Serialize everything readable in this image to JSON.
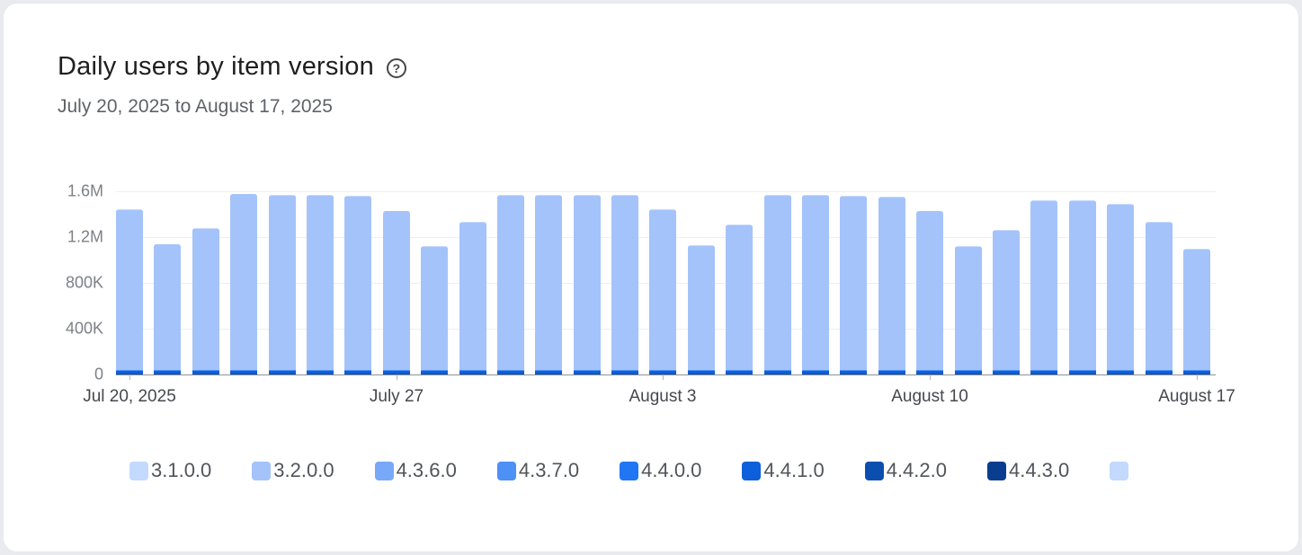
{
  "header": {
    "help_glyph": "?"
  },
  "chart_data": {
    "type": "bar",
    "stacked": true,
    "title": "Daily users by item version",
    "subtitle": "July 20, 2025 to August 17, 2025",
    "ylim": [
      0,
      1600000
    ],
    "grid": true,
    "legend_position": "bottom",
    "y_ticks": [
      {
        "value": 0,
        "label": "0"
      },
      {
        "value": 400000,
        "label": "400K"
      },
      {
        "value": 800000,
        "label": "800K"
      },
      {
        "value": 1200000,
        "label": "1.2M"
      },
      {
        "value": 1600000,
        "label": "1.6M"
      }
    ],
    "x": [
      "Jul 20",
      "Jul 21",
      "Jul 22",
      "Jul 23",
      "Jul 24",
      "Jul 25",
      "Jul 26",
      "Jul 27",
      "Jul 28",
      "Jul 29",
      "Jul 30",
      "Jul 31",
      "Aug 1",
      "Aug 2",
      "Aug 3",
      "Aug 4",
      "Aug 5",
      "Aug 6",
      "Aug 7",
      "Aug 8",
      "Aug 9",
      "Aug 10",
      "Aug 11",
      "Aug 12",
      "Aug 13",
      "Aug 14",
      "Aug 15",
      "Aug 16",
      "Aug 17"
    ],
    "x_tick_labels": [
      {
        "index": 0,
        "label": "Jul 20, 2025"
      },
      {
        "index": 7,
        "label": "July 27"
      },
      {
        "index": 14,
        "label": "August 3"
      },
      {
        "index": 21,
        "label": "August 10"
      },
      {
        "index": 28,
        "label": "August 17"
      }
    ],
    "totals_estimated": [
      1440000,
      1140000,
      1280000,
      1580000,
      1570000,
      1570000,
      1560000,
      1430000,
      1120000,
      1330000,
      1570000,
      1570000,
      1570000,
      1570000,
      1440000,
      1130000,
      1310000,
      1570000,
      1570000,
      1560000,
      1550000,
      1430000,
      1120000,
      1260000,
      1520000,
      1520000,
      1490000,
      1330000,
      1100000
    ],
    "series": [
      {
        "name": "4.4.3.0",
        "color": "#0a3d8f",
        "values": 2000
      },
      {
        "name": "4.4.2.0",
        "color": "#0c4eb0",
        "values": 8000
      },
      {
        "name": "4.4.1.0",
        "color": "#0d5fdb",
        "values": 20000
      },
      {
        "name": "4.4.0.0",
        "color": "#2176f4",
        "values": 5000
      },
      {
        "name": "4.3.7.0",
        "color": "#4d90f6",
        "values": 3000
      },
      {
        "name": "4.3.6.0",
        "color": "#77a9f8",
        "values": 3000
      },
      {
        "name": "3.2.0.0",
        "color": "#a4c3fa",
        "values": [
          1393000,
          1093000,
          1233000,
          1533000,
          1523000,
          1523000,
          1513000,
          1383000,
          1073000,
          1283000,
          1523000,
          1523000,
          1523000,
          1523000,
          1393000,
          1083000,
          1263000,
          1523000,
          1523000,
          1513000,
          1503000,
          1383000,
          1073000,
          1213000,
          1473000,
          1473000,
          1443000,
          1283000,
          1053000
        ]
      },
      {
        "name": "3.1.0.0",
        "color": "#c3d9fd",
        "values": 6000
      }
    ],
    "legend": [
      {
        "label": "3.1.0.0",
        "color": "#c3d9fd"
      },
      {
        "label": "3.2.0.0",
        "color": "#a4c3fa"
      },
      {
        "label": "4.3.6.0",
        "color": "#77a9f8"
      },
      {
        "label": "4.3.7.0",
        "color": "#4d90f6"
      },
      {
        "label": "4.4.0.0",
        "color": "#2176f4"
      },
      {
        "label": "4.4.1.0",
        "color": "#0d5fdb"
      },
      {
        "label": "4.4.2.0",
        "color": "#0c4eb0"
      },
      {
        "label": "4.4.3.0",
        "color": "#0a3d8f"
      },
      {
        "label": "",
        "color": "#c3d9fd",
        "partial": true
      }
    ]
  }
}
